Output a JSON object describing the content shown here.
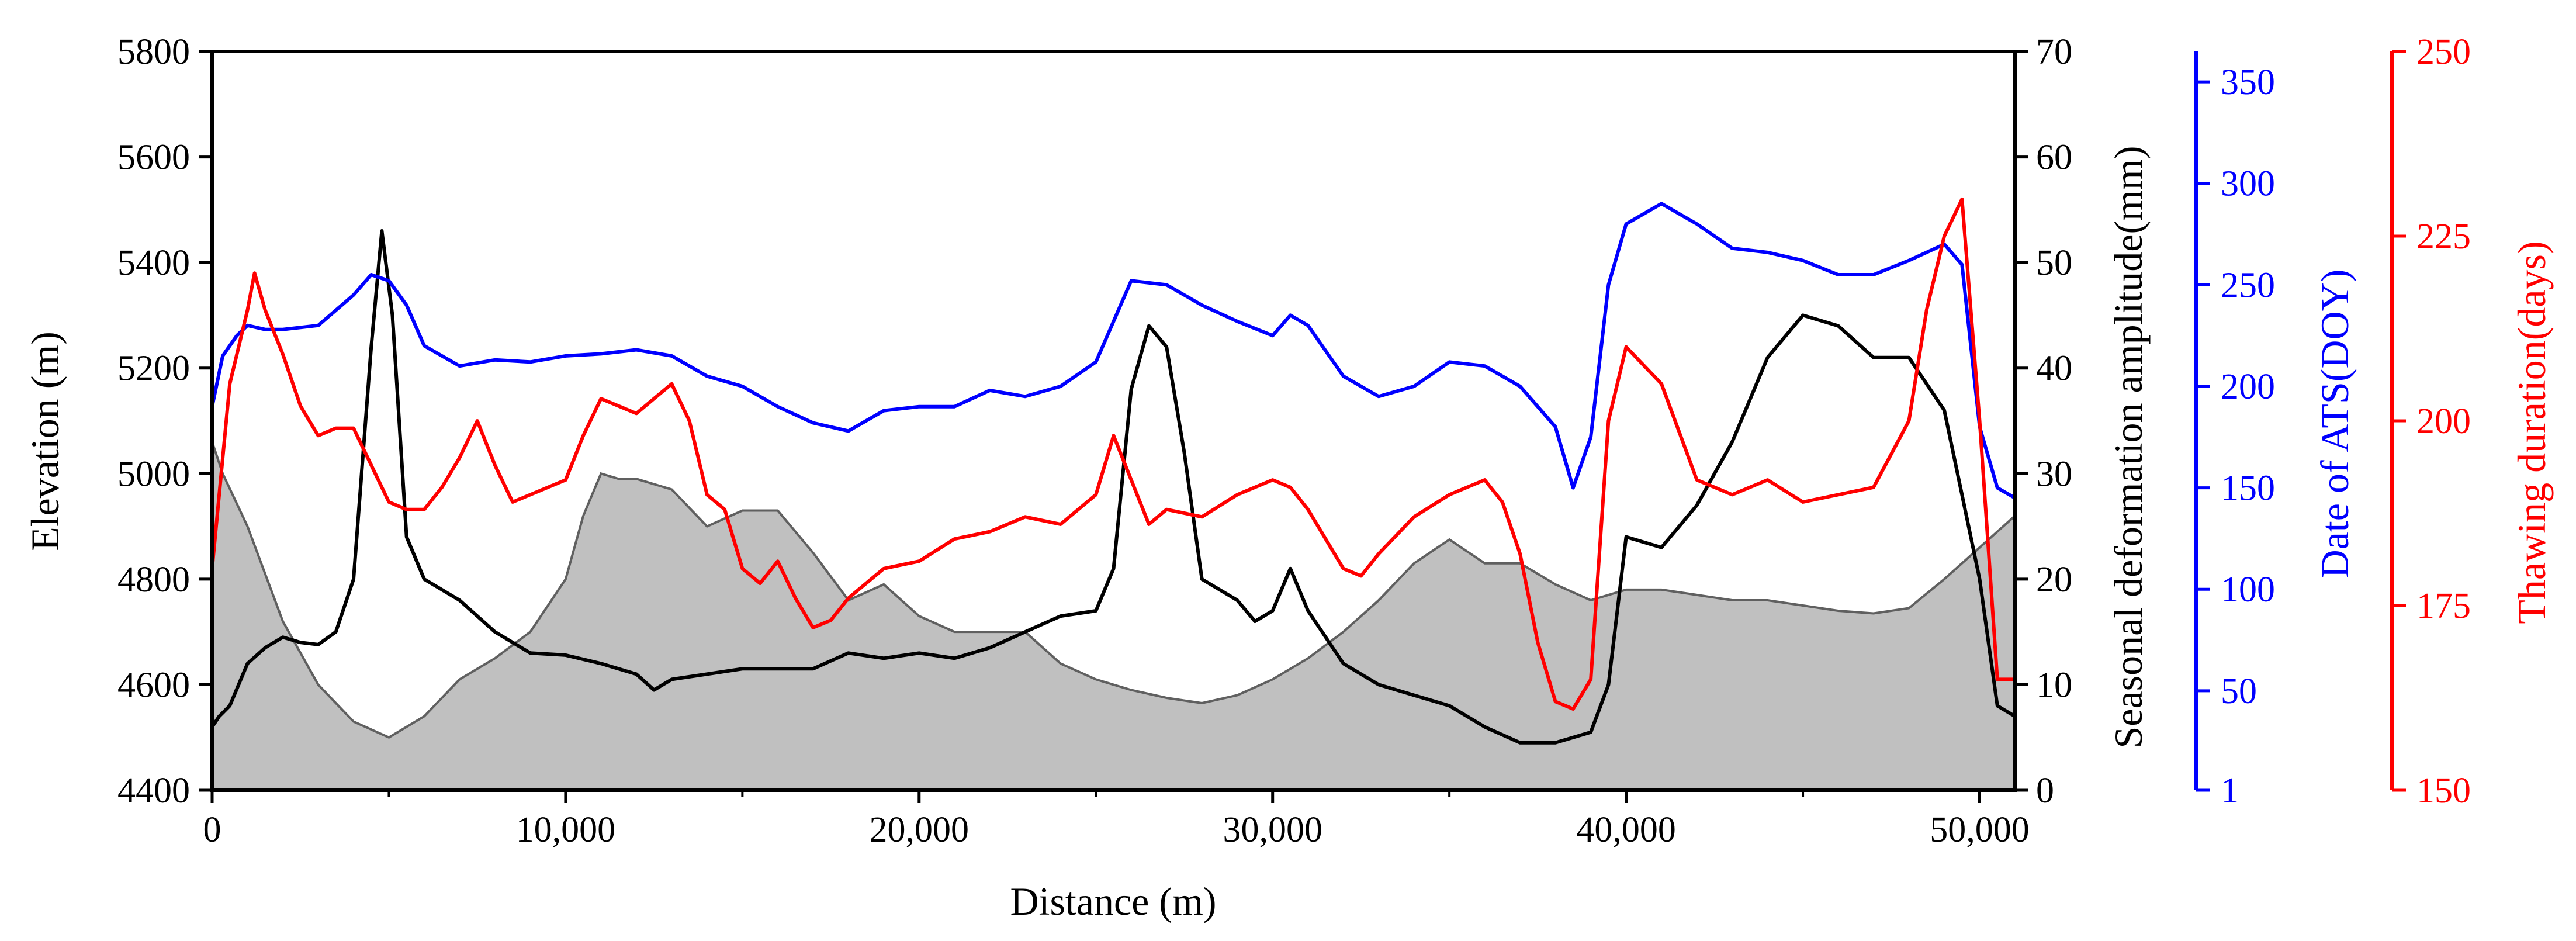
{
  "chart_data": {
    "type": "line",
    "title": "",
    "xlabel": "Distance (m)",
    "xlim": [
      0,
      51000
    ],
    "x_ticks": [
      0,
      10000,
      20000,
      30000,
      40000,
      50000
    ],
    "x_tick_labels": [
      "0",
      "10,000",
      "20,000",
      "30,000",
      "40,000",
      "50,000"
    ],
    "axes": {
      "elevation": {
        "label": "Elevation (m)",
        "side": "left",
        "color": "#000000",
        "lim": [
          4400,
          5800
        ],
        "ticks": [
          4400,
          4600,
          4800,
          5000,
          5200,
          5400,
          5600,
          5800
        ],
        "tick_labels": [
          "4400",
          "4600",
          "4800",
          "5000",
          "5200",
          "5400",
          "5600",
          "5800"
        ]
      },
      "deformation": {
        "label": "Seasonal deformation amplitude(mm)",
        "side": "right",
        "color": "#000000",
        "lim": [
          0,
          70
        ],
        "ticks": [
          0,
          10,
          20,
          30,
          40,
          50,
          60,
          70
        ],
        "tick_labels": [
          "0",
          "10",
          "20",
          "30",
          "40",
          "50",
          "60",
          "70"
        ]
      },
      "ats": {
        "label": "Date of ATS(DOY)",
        "side": "right-offset-1",
        "color": "#0000ff",
        "lim": [
          1,
          365
        ],
        "ticks": [
          1,
          50,
          100,
          150,
          200,
          250,
          300,
          350
        ],
        "tick_labels": [
          "1",
          "50",
          "100",
          "150",
          "200",
          "250",
          "300",
          "350"
        ]
      },
      "thawing": {
        "label": "Thawing duration(days)",
        "side": "right-offset-2",
        "color": "#ff0000",
        "lim": [
          150,
          250
        ],
        "ticks": [
          150,
          175,
          200,
          225,
          250
        ],
        "tick_labels": [
          "150",
          "175",
          "200",
          "225",
          "250"
        ]
      }
    },
    "series": [
      {
        "name": "Elevation",
        "axis": "elevation",
        "style": "area",
        "color": "#c0c0c0",
        "edge": "#606060",
        "x": [
          0,
          300,
          1000,
          2000,
          3000,
          4000,
          5000,
          6000,
          7000,
          8000,
          9000,
          10000,
          10500,
          11000,
          11500,
          12000,
          13000,
          14000,
          15000,
          16000,
          17000,
          18000,
          19000,
          20000,
          21000,
          22000,
          23000,
          24000,
          25000,
          26000,
          27000,
          28000,
          29000,
          30000,
          31000,
          32000,
          33000,
          34000,
          35000,
          36000,
          37000,
          38000,
          39000,
          40000,
          41000,
          42000,
          43000,
          44000,
          45000,
          46000,
          47000,
          48000,
          49000,
          50000,
          51000
        ],
        "values": [
          5060,
          5000,
          4900,
          4720,
          4600,
          4530,
          4500,
          4540,
          4610,
          4650,
          4700,
          4800,
          4920,
          5000,
          4990,
          4990,
          4970,
          4900,
          4930,
          4930,
          4850,
          4760,
          4790,
          4730,
          4700,
          4700,
          4700,
          4640,
          4610,
          4590,
          4575,
          4565,
          4580,
          4610,
          4650,
          4700,
          4760,
          4830,
          4875,
          4830,
          4830,
          4790,
          4760,
          4780,
          4780,
          4770,
          4760,
          4760,
          4750,
          4740,
          4735,
          4745,
          4800,
          4860,
          4920
        ]
      },
      {
        "name": "Seasonal deformation amplitude",
        "axis": "deformation",
        "style": "line",
        "color": "#000000",
        "x": [
          0,
          200,
          500,
          1000,
          1500,
          2000,
          2500,
          3000,
          3500,
          4000,
          4500,
          4800,
          5100,
          5500,
          6000,
          7000,
          8000,
          9000,
          10000,
          11000,
          12000,
          12500,
          13000,
          14000,
          15000,
          16000,
          17000,
          18000,
          19000,
          20000,
          21000,
          22000,
          23000,
          24000,
          25000,
          25500,
          26000,
          26500,
          27000,
          27500,
          28000,
          29000,
          29500,
          30000,
          30500,
          31000,
          32000,
          33000,
          34000,
          35000,
          36000,
          37000,
          38000,
          38500,
          39000,
          39500,
          40000,
          41000,
          42000,
          43000,
          44000,
          45000,
          46000,
          47000,
          48000,
          49000,
          49500,
          50000,
          50500,
          51000
        ],
        "values": [
          6,
          7,
          8,
          12,
          13.5,
          14.5,
          14,
          13.8,
          15,
          20,
          42,
          53,
          45,
          24,
          20,
          18,
          15,
          13,
          12.8,
          12,
          11,
          9.5,
          10.5,
          11,
          11.5,
          11.5,
          11.5,
          13,
          12.5,
          13,
          12.5,
          13.5,
          15,
          16.5,
          17,
          21,
          38,
          44,
          42,
          32,
          20,
          18,
          16,
          17,
          21,
          17,
          12,
          10,
          9,
          8,
          6,
          4.5,
          4.5,
          5,
          5.5,
          10,
          24,
          23,
          27,
          33,
          41,
          45,
          44,
          41,
          41,
          36,
          28,
          20,
          8,
          7
        ]
      },
      {
        "name": "Date of ATS",
        "axis": "ats",
        "style": "line",
        "color": "#0000ff",
        "x": [
          0,
          300,
          700,
          1000,
          1500,
          2000,
          3000,
          4000,
          4500,
          5000,
          5500,
          6000,
          7000,
          8000,
          9000,
          10000,
          11000,
          12000,
          13000,
          14000,
          15000,
          16000,
          17000,
          18000,
          19000,
          20000,
          21000,
          22000,
          23000,
          24000,
          25000,
          25500,
          26000,
          27000,
          28000,
          29000,
          30000,
          30500,
          31000,
          32000,
          33000,
          34000,
          35000,
          36000,
          37000,
          38000,
          38500,
          39000,
          39500,
          40000,
          41000,
          42000,
          43000,
          44000,
          45000,
          46000,
          47000,
          48000,
          49000,
          49500,
          50000,
          50500,
          51000
        ],
        "values": [
          190,
          215,
          225,
          230,
          228,
          228,
          230,
          245,
          255,
          252,
          240,
          220,
          210,
          213,
          212,
          215,
          216,
          218,
          215,
          205,
          200,
          190,
          182,
          178,
          188,
          190,
          190,
          198,
          195,
          200,
          212,
          232,
          252,
          250,
          240,
          232,
          225,
          235,
          230,
          205,
          195,
          200,
          212,
          210,
          200,
          180,
          150,
          175,
          250,
          280,
          290,
          280,
          268,
          266,
          262,
          255,
          255,
          262,
          270,
          260,
          180,
          150,
          145
        ]
      },
      {
        "name": "Thawing duration",
        "axis": "thawing",
        "style": "line",
        "color": "#ff0000",
        "x": [
          0,
          200,
          500,
          1000,
          1200,
          1500,
          2000,
          2500,
          3000,
          3500,
          4000,
          4500,
          5000,
          5500,
          6000,
          6500,
          7000,
          7500,
          8000,
          8500,
          9000,
          10000,
          10500,
          11000,
          11500,
          12000,
          12500,
          13000,
          13500,
          14000,
          14500,
          15000,
          15500,
          16000,
          16500,
          17000,
          17500,
          18000,
          19000,
          20000,
          21000,
          22000,
          23000,
          24000,
          25000,
          25500,
          26000,
          26500,
          27000,
          28000,
          29000,
          30000,
          30500,
          31000,
          32000,
          32500,
          33000,
          34000,
          35000,
          36000,
          36500,
          37000,
          37500,
          38000,
          38500,
          39000,
          39500,
          40000,
          41000,
          42000,
          43000,
          44000,
          45000,
          46000,
          47000,
          48000,
          48500,
          49000,
          49500,
          50000,
          50500,
          51000
        ],
        "values": [
          180,
          190,
          205,
          215,
          220,
          215,
          209,
          202,
          198,
          199,
          199,
          194,
          189,
          188,
          188,
          191,
          195,
          200,
          194,
          189,
          190,
          192,
          198,
          203,
          202,
          201,
          203,
          205,
          200,
          190,
          188,
          180,
          178,
          181,
          176,
          172,
          173,
          176,
          180,
          181,
          184,
          185,
          187,
          186,
          190,
          198,
          192,
          186,
          188,
          187,
          190,
          192,
          191,
          188,
          180,
          179,
          182,
          187,
          190,
          192,
          189,
          182,
          170,
          162,
          161,
          165,
          200,
          210,
          205,
          192,
          190,
          192,
          189,
          190,
          191,
          200,
          215,
          225,
          230,
          200,
          165,
          165
        ]
      }
    ]
  }
}
